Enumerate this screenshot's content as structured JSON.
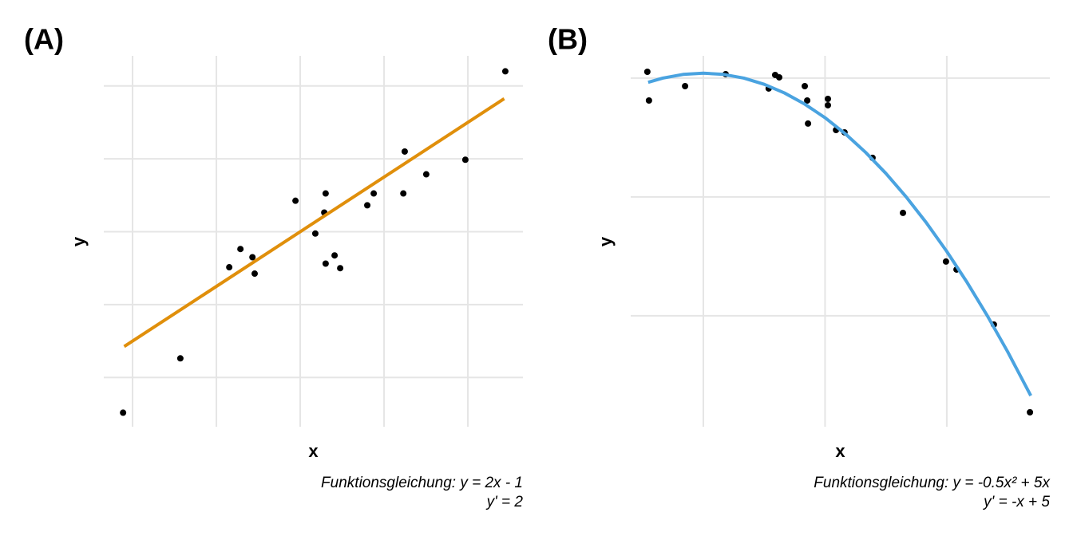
{
  "chart_data": [
    {
      "type": "scatter",
      "panel_label": "(A)",
      "xlabel": "x",
      "ylabel": "y",
      "caption": [
        "Funktionsgleichung: y = 2x - 1",
        "y' = 2"
      ],
      "x": [
        2.66,
        4.71,
        6.46,
        6.86,
        7.29,
        7.37,
        8.83,
        9.54,
        9.86,
        9.91,
        9.91,
        10.23,
        10.43,
        11.4,
        11.63,
        12.69,
        12.74,
        13.51,
        14.91,
        16.34
      ],
      "values": [
        -2.86,
        3.1,
        13.1,
        15.1,
        14.2,
        12.4,
        20.4,
        16.8,
        19.1,
        21.2,
        13.5,
        14.4,
        13.0,
        19.9,
        21.2,
        21.2,
        25.8,
        23.3,
        24.9,
        34.6
      ],
      "point_color": "#000000",
      "fit": {
        "x": [
          2.7,
          16.3
        ],
        "values": [
          4.4,
          31.6
        ],
        "color": "#e08f0b"
      },
      "xlim": [
        1.97,
        16.97
      ],
      "ylim": [
        -4.4,
        36.3
      ],
      "xgrid": [
        3,
        6,
        9,
        12,
        15
      ],
      "ygrid": [
        1,
        9,
        17,
        25,
        33
      ]
    },
    {
      "type": "scatter",
      "panel_label": "(B)",
      "xlabel": "x",
      "ylabel": "y",
      "caption": [
        "Funktionsgleichung: y = -0.5x² + 5x",
        "y' = -x + 5"
      ],
      "x": [
        3.62,
        3.66,
        4.55,
        5.55,
        6.61,
        6.77,
        6.87,
        7.5,
        7.56,
        7.58,
        8.07,
        8.07,
        8.27,
        8.48,
        9.17,
        9.92,
        10.98,
        11.24,
        12.16,
        13.05
      ],
      "values": [
        12.64,
        9.74,
        11.19,
        12.4,
        10.95,
        12.32,
        12.08,
        11.19,
        9.74,
        7.41,
        9.9,
        9.26,
        6.76,
        6.52,
        3.95,
        -1.61,
        -6.52,
        -7.33,
        -12.88,
        -21.74
      ],
      "point_color": "#000000",
      "fit": {
        "x": [
          3.64,
          4,
          4.5,
          5,
          5.5,
          6,
          6.5,
          7,
          7.5,
          8,
          8.5,
          9,
          9.5,
          10,
          10.5,
          11,
          11.5,
          12,
          12.5,
          13.07
        ],
        "values": [
          11.58,
          12,
          12.375,
          12.5,
          12.375,
          12,
          11.375,
          10.5,
          9.375,
          8,
          6.375,
          4.5,
          2.375,
          0,
          -2.625,
          -5.5,
          -8.625,
          -12,
          -15.625,
          -20.06
        ],
        "color": "#4aa3e0"
      },
      "xlim": [
        3.21,
        13.54
      ],
      "ylim": [
        -23.2,
        14.25
      ],
      "xgrid": [
        5,
        8,
        11
      ],
      "ygrid": [
        -12,
        0,
        12
      ]
    }
  ]
}
